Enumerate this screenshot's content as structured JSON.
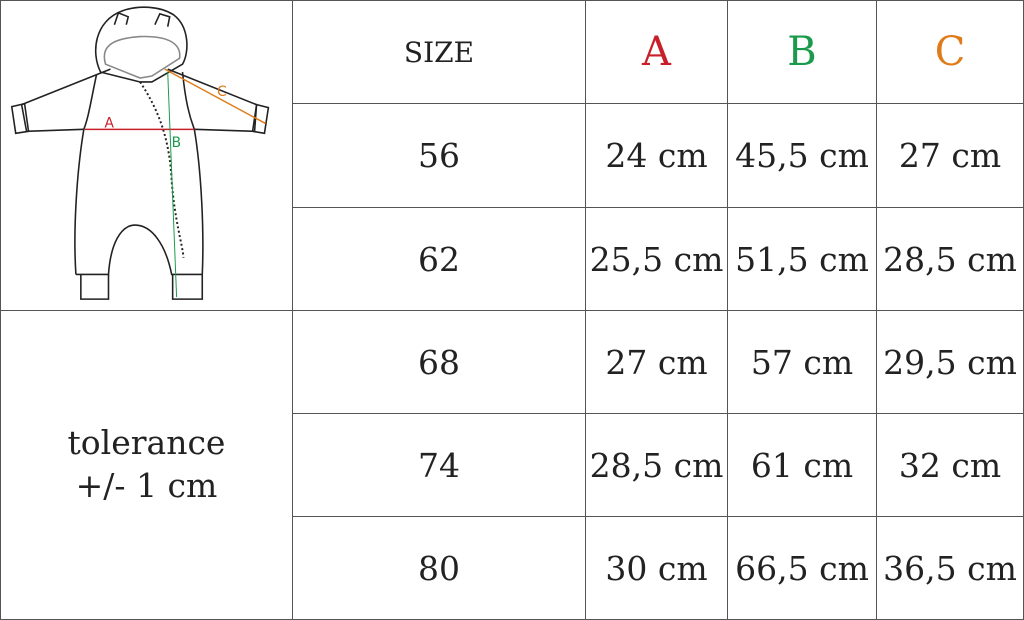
{
  "header": {
    "size_label": "SIZE",
    "columns": [
      {
        "label": "A",
        "color": "#c8202a"
      },
      {
        "label": "B",
        "color": "#1a9a4a"
      },
      {
        "label": "C",
        "color": "#e07b1a"
      }
    ]
  },
  "illustration": {
    "icon": "baby-onesie-diagram",
    "labels": {
      "a": "A",
      "b": "B",
      "c": "C"
    }
  },
  "tolerance": {
    "line1": "tolerance",
    "line2": "+/- 1 cm"
  },
  "rows": [
    {
      "size": "56",
      "a": "24 cm",
      "b": "45,5 cm",
      "c": "27 cm"
    },
    {
      "size": "62",
      "a": "25,5 cm",
      "b": "51,5 cm",
      "c": "28,5 cm"
    },
    {
      "size": "68",
      "a": "27 cm",
      "b": "57 cm",
      "c": "29,5 cm"
    },
    {
      "size": "74",
      "a": "28,5 cm",
      "b": "61 cm",
      "c": "32 cm"
    },
    {
      "size": "80",
      "a": "30 cm",
      "b": "66,5 cm",
      "c": "36,5 cm"
    }
  ]
}
